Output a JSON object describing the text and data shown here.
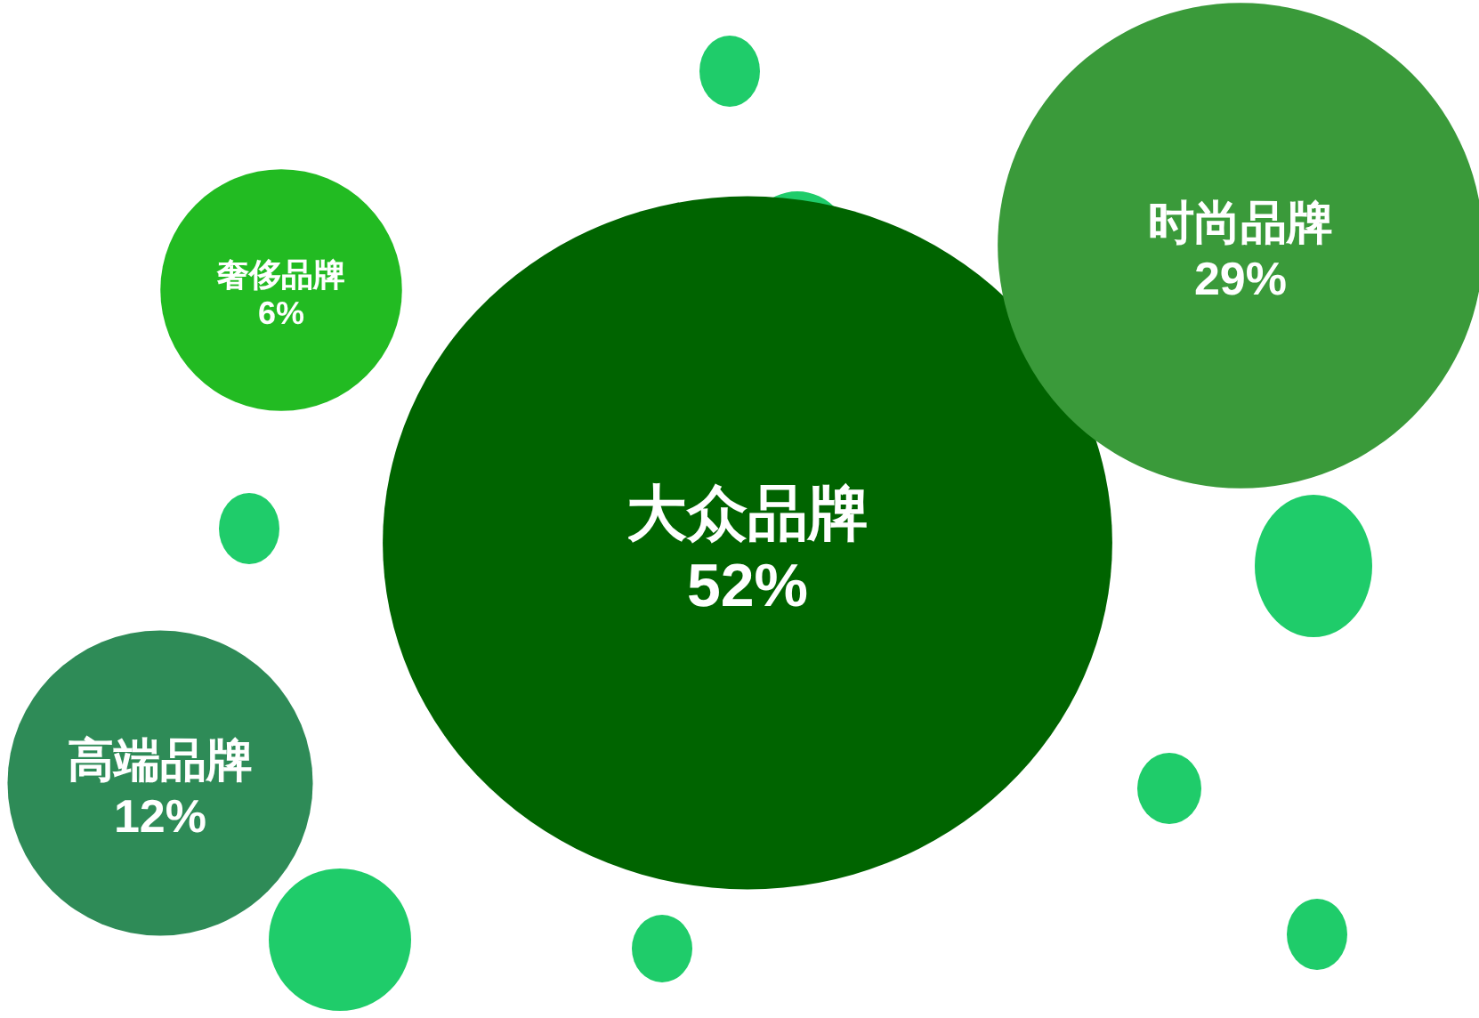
{
  "chart_data": {
    "type": "other",
    "categories": [
      "大众品牌",
      "时尚品牌",
      "奢侈品牌",
      "高端品牌"
    ],
    "values": [
      52,
      29,
      6,
      12
    ],
    "value_labels": [
      "52%",
      "29%",
      "6%",
      "12%"
    ],
    "colors": [
      "#006400",
      "#3a9a3a",
      "#22bb22",
      "#2e8b57"
    ]
  }
}
